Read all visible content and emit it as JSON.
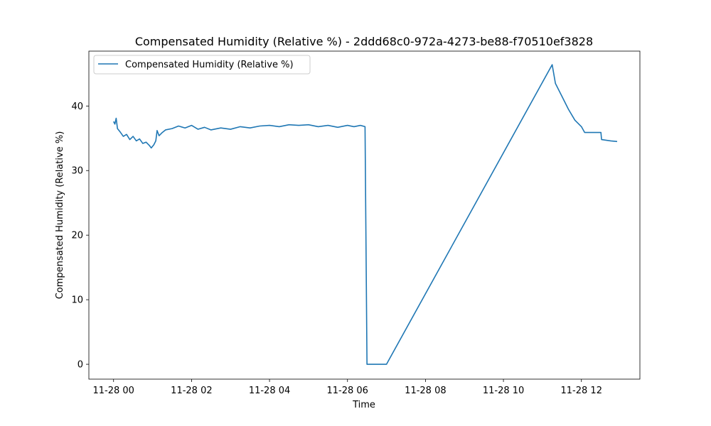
{
  "chart_data": {
    "type": "line",
    "title": "Compensated Humidity (Relative %) - 2ddd68c0-972a-4273-be88-f70510ef3828",
    "xlabel": "Time",
    "ylabel": "Compensated Humidity (Relative %)",
    "xlim": [
      "2023-11-27T23:22",
      "2023-11-28T13:30"
    ],
    "ylim": [
      -2.3,
      48.5
    ],
    "xticks": [
      {
        "value": "2023-11-28T00:00",
        "label": "11-28 00"
      },
      {
        "value": "2023-11-28T02:00",
        "label": "11-28 02"
      },
      {
        "value": "2023-11-28T04:00",
        "label": "11-28 04"
      },
      {
        "value": "2023-11-28T06:00",
        "label": "11-28 06"
      },
      {
        "value": "2023-11-28T08:00",
        "label": "11-28 08"
      },
      {
        "value": "2023-11-28T10:00",
        "label": "11-28 10"
      },
      {
        "value": "2023-11-28T12:00",
        "label": "11-28 12"
      }
    ],
    "yticks": [
      0,
      10,
      20,
      30,
      40
    ],
    "grid": false,
    "legend": {
      "position": "top-left",
      "entries": [
        "Compensated Humidity (Relative %)"
      ]
    },
    "colors": {
      "series": "#1f77b4"
    },
    "series": [
      {
        "name": "Compensated Humidity (Relative %)",
        "points": [
          [
            "2023-11-28T00:00",
            37.6
          ],
          [
            "2023-11-28T00:02",
            37.2
          ],
          [
            "2023-11-28T00:04",
            38.1
          ],
          [
            "2023-11-28T00:06",
            36.5
          ],
          [
            "2023-11-28T00:10",
            36.0
          ],
          [
            "2023-11-28T00:15",
            35.3
          ],
          [
            "2023-11-28T00:20",
            35.6
          ],
          [
            "2023-11-28T00:25",
            34.8
          ],
          [
            "2023-11-28T00:30",
            35.3
          ],
          [
            "2023-11-28T00:35",
            34.6
          ],
          [
            "2023-11-28T00:40",
            34.9
          ],
          [
            "2023-11-28T00:45",
            34.2
          ],
          [
            "2023-11-28T00:50",
            34.4
          ],
          [
            "2023-11-28T00:55",
            33.9
          ],
          [
            "2023-11-28T00:58",
            33.5
          ],
          [
            "2023-11-28T01:02",
            34.0
          ],
          [
            "2023-11-28T01:05",
            34.6
          ],
          [
            "2023-11-28T01:07",
            36.2
          ],
          [
            "2023-11-28T01:10",
            35.4
          ],
          [
            "2023-11-28T01:15",
            35.9
          ],
          [
            "2023-11-28T01:20",
            36.3
          ],
          [
            "2023-11-28T01:30",
            36.5
          ],
          [
            "2023-11-28T01:40",
            36.9
          ],
          [
            "2023-11-28T01:50",
            36.6
          ],
          [
            "2023-11-28T02:00",
            37.0
          ],
          [
            "2023-11-28T02:10",
            36.4
          ],
          [
            "2023-11-28T02:20",
            36.7
          ],
          [
            "2023-11-28T02:30",
            36.3
          ],
          [
            "2023-11-28T02:45",
            36.6
          ],
          [
            "2023-11-28T03:00",
            36.4
          ],
          [
            "2023-11-28T03:15",
            36.8
          ],
          [
            "2023-11-28T03:30",
            36.6
          ],
          [
            "2023-11-28T03:45",
            36.9
          ],
          [
            "2023-11-28T04:00",
            37.0
          ],
          [
            "2023-11-28T04:15",
            36.8
          ],
          [
            "2023-11-28T04:30",
            37.1
          ],
          [
            "2023-11-28T04:45",
            37.0
          ],
          [
            "2023-11-28T05:00",
            37.1
          ],
          [
            "2023-11-28T05:15",
            36.8
          ],
          [
            "2023-11-28T05:30",
            37.0
          ],
          [
            "2023-11-28T05:45",
            36.7
          ],
          [
            "2023-11-28T06:00",
            37.0
          ],
          [
            "2023-11-28T06:10",
            36.8
          ],
          [
            "2023-11-28T06:20",
            37.0
          ],
          [
            "2023-11-28T06:27",
            36.8
          ],
          [
            "2023-11-28T06:30",
            0.0
          ],
          [
            "2023-11-28T07:00",
            0.0
          ],
          [
            "2023-11-28T11:15",
            46.4
          ],
          [
            "2023-11-28T11:20",
            43.5
          ],
          [
            "2023-11-28T11:30",
            41.5
          ],
          [
            "2023-11-28T11:40",
            39.5
          ],
          [
            "2023-11-28T11:50",
            37.8
          ],
          [
            "2023-11-28T12:00",
            36.8
          ],
          [
            "2023-11-28T12:05",
            35.9
          ],
          [
            "2023-11-28T12:30",
            35.9
          ],
          [
            "2023-11-28T12:31",
            34.8
          ],
          [
            "2023-11-28T12:45",
            34.6
          ],
          [
            "2023-11-28T12:55",
            34.5
          ]
        ]
      }
    ]
  }
}
